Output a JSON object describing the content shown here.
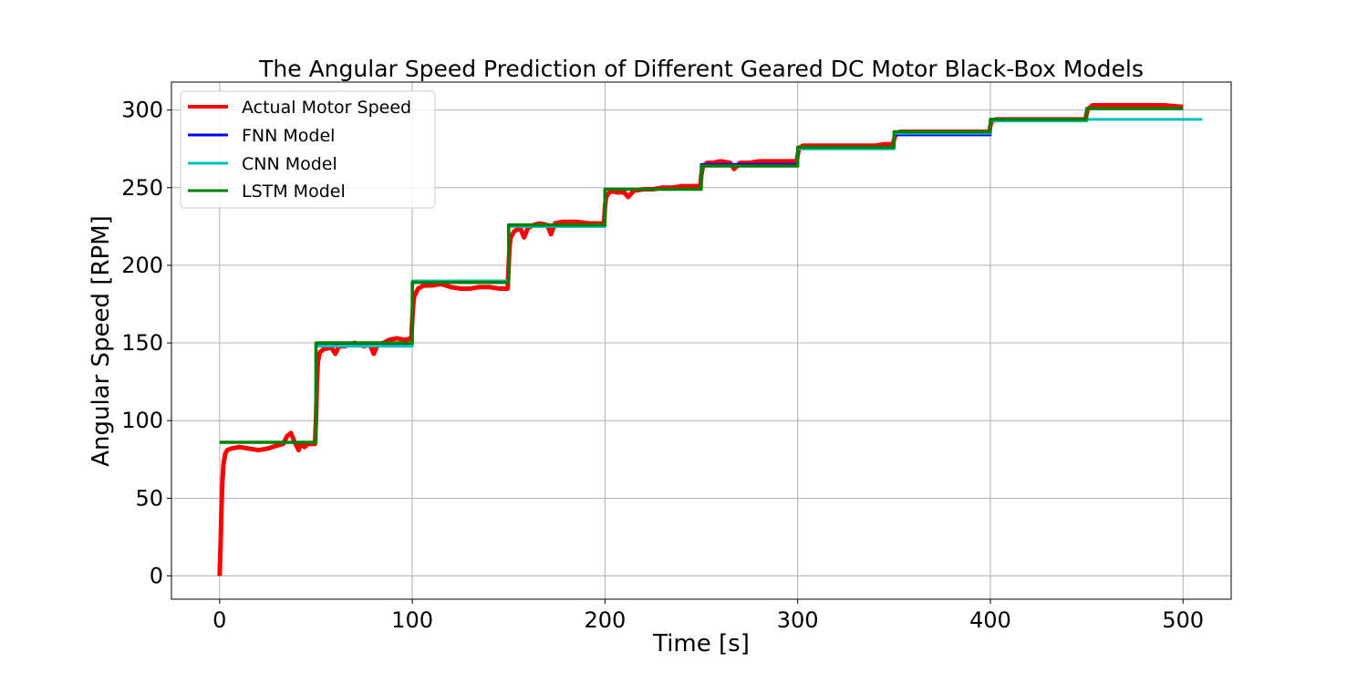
{
  "chart_data": {
    "type": "line",
    "title": "The Angular Speed Prediction of Different Geared DC Motor Black-Box Models",
    "xlabel": "Time [s]",
    "ylabel": "Angular Speed [RPM]",
    "xlim": [
      -25,
      525
    ],
    "ylim": [
      -15,
      318
    ],
    "x_ticks": [
      0,
      100,
      200,
      300,
      400,
      500
    ],
    "y_ticks": [
      0,
      50,
      100,
      150,
      200,
      250,
      300
    ],
    "grid": true,
    "legend": "upper left",
    "series": [
      {
        "name": "Actual Motor Speed",
        "color": "#ff0000",
        "points": [
          [
            0,
            0
          ],
          [
            0.5,
            20
          ],
          [
            1,
            45
          ],
          [
            1.5,
            62
          ],
          [
            2,
            72
          ],
          [
            3,
            79
          ],
          [
            4,
            81
          ],
          [
            6,
            82
          ],
          [
            10,
            83
          ],
          [
            15,
            82
          ],
          [
            20,
            81
          ],
          [
            25,
            82
          ],
          [
            30,
            84
          ],
          [
            33,
            85
          ],
          [
            35,
            90
          ],
          [
            37,
            92
          ],
          [
            39,
            86
          ],
          [
            41,
            81
          ],
          [
            42,
            85
          ],
          [
            44,
            83
          ],
          [
            46,
            85
          ],
          [
            49.5,
            85
          ],
          [
            50,
            100
          ],
          [
            50.5,
            125
          ],
          [
            51,
            138
          ],
          [
            52,
            144
          ],
          [
            54,
            146
          ],
          [
            58,
            147
          ],
          [
            60,
            143
          ],
          [
            62,
            148
          ],
          [
            65,
            148
          ],
          [
            70,
            150
          ],
          [
            75,
            148
          ],
          [
            78,
            149
          ],
          [
            80,
            143
          ],
          [
            82,
            149
          ],
          [
            85,
            150
          ],
          [
            88,
            152
          ],
          [
            92,
            153
          ],
          [
            96,
            152
          ],
          [
            99.5,
            153
          ],
          [
            100,
            165
          ],
          [
            100.5,
            175
          ],
          [
            101,
            180
          ],
          [
            103,
            185
          ],
          [
            106,
            187
          ],
          [
            110,
            187
          ],
          [
            115,
            188
          ],
          [
            120,
            186
          ],
          [
            125,
            185
          ],
          [
            130,
            185
          ],
          [
            135,
            186
          ],
          [
            140,
            186
          ],
          [
            145,
            185
          ],
          [
            149.5,
            185
          ],
          [
            150,
            200
          ],
          [
            150.5,
            212
          ],
          [
            151,
            218
          ],
          [
            153,
            222
          ],
          [
            156,
            224
          ],
          [
            158,
            218
          ],
          [
            160,
            224
          ],
          [
            163,
            226
          ],
          [
            166,
            227
          ],
          [
            170,
            226
          ],
          [
            172,
            220
          ],
          [
            174,
            227
          ],
          [
            178,
            228
          ],
          [
            185,
            228
          ],
          [
            192,
            227
          ],
          [
            199.5,
            227
          ],
          [
            200,
            238
          ],
          [
            200.5,
            243
          ],
          [
            201,
            245
          ],
          [
            203,
            248
          ],
          [
            206,
            247
          ],
          [
            210,
            247
          ],
          [
            212,
            244
          ],
          [
            215,
            248
          ],
          [
            220,
            249
          ],
          [
            225,
            249
          ],
          [
            230,
            250
          ],
          [
            235,
            250
          ],
          [
            240,
            251
          ],
          [
            245,
            251
          ],
          [
            249.5,
            251
          ],
          [
            250,
            258
          ],
          [
            250.5,
            262
          ],
          [
            251,
            264
          ],
          [
            253,
            266
          ],
          [
            256,
            266
          ],
          [
            260,
            267
          ],
          [
            265,
            266
          ],
          [
            267,
            262
          ],
          [
            270,
            266
          ],
          [
            275,
            266
          ],
          [
            280,
            267
          ],
          [
            285,
            267
          ],
          [
            290,
            267
          ],
          [
            295,
            267
          ],
          [
            299.5,
            267
          ],
          [
            300,
            271
          ],
          [
            300.5,
            274
          ],
          [
            301,
            276
          ],
          [
            303,
            277
          ],
          [
            310,
            277
          ],
          [
            320,
            277
          ],
          [
            330,
            277
          ],
          [
            340,
            277
          ],
          [
            345,
            278
          ],
          [
            349.5,
            278
          ],
          [
            350,
            281
          ],
          [
            350.5,
            283
          ],
          [
            351,
            284
          ],
          [
            353,
            286
          ],
          [
            360,
            286
          ],
          [
            370,
            286
          ],
          [
            380,
            286
          ],
          [
            390,
            286
          ],
          [
            399.5,
            286
          ],
          [
            400,
            290
          ],
          [
            400.5,
            292
          ],
          [
            401,
            293
          ],
          [
            403,
            294
          ],
          [
            410,
            294
          ],
          [
            420,
            294
          ],
          [
            430,
            294
          ],
          [
            440,
            294
          ],
          [
            449.5,
            294
          ],
          [
            450,
            298
          ],
          [
            450.5,
            300
          ],
          [
            451,
            301
          ],
          [
            453,
            303
          ],
          [
            460,
            303
          ],
          [
            470,
            303
          ],
          [
            480,
            303
          ],
          [
            490,
            303
          ],
          [
            500,
            302
          ]
        ]
      },
      {
        "name": "FNN Model",
        "color": "#0000ff",
        "steps": [
          [
            0,
            50,
            86
          ],
          [
            50,
            100,
            149
          ],
          [
            100,
            150,
            189
          ],
          [
            150,
            200,
            226
          ],
          [
            200,
            250,
            249
          ],
          [
            250,
            300,
            265
          ],
          [
            300,
            350,
            276
          ],
          [
            350,
            400,
            284
          ],
          [
            400,
            450,
            294
          ],
          [
            450,
            500,
            301
          ]
        ]
      },
      {
        "name": "CNN Model",
        "color": "#00bfbf",
        "steps": [
          [
            0,
            50,
            86
          ],
          [
            50,
            100,
            148
          ],
          [
            100,
            150,
            190
          ],
          [
            150,
            200,
            225
          ],
          [
            200,
            250,
            249
          ],
          [
            250,
            300,
            264
          ],
          [
            300,
            350,
            275
          ],
          [
            350,
            400,
            285
          ],
          [
            400,
            450,
            293
          ],
          [
            450,
            510,
            294
          ]
        ]
      },
      {
        "name": "LSTM Model",
        "color": "#008000",
        "steps": [
          [
            0,
            50,
            86
          ],
          [
            50,
            100,
            150
          ],
          [
            100,
            150,
            189
          ],
          [
            150,
            200,
            226
          ],
          [
            200,
            250,
            249
          ],
          [
            250,
            300,
            264
          ],
          [
            300,
            350,
            276
          ],
          [
            350,
            400,
            286
          ],
          [
            400,
            450,
            294
          ],
          [
            450,
            500,
            301
          ]
        ]
      }
    ]
  }
}
